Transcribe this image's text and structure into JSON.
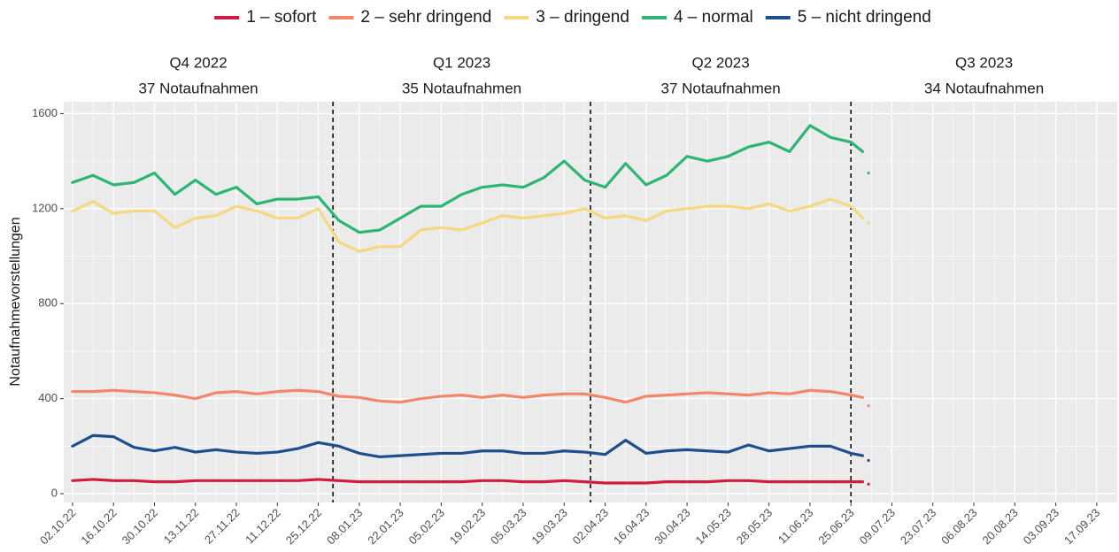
{
  "chart_data": {
    "type": "line",
    "ylabel": "Notaufnahmevorstellungen",
    "x": [
      "2022-10-02",
      "2022-10-09",
      "2022-10-16",
      "2022-10-23",
      "2022-10-30",
      "2022-11-06",
      "2022-11-13",
      "2022-11-20",
      "2022-11-27",
      "2022-12-04",
      "2022-12-11",
      "2022-12-18",
      "2022-12-25",
      "2023-01-01",
      "2023-01-08",
      "2023-01-15",
      "2023-01-22",
      "2023-01-29",
      "2023-02-05",
      "2023-02-12",
      "2023-02-19",
      "2023-02-26",
      "2023-03-05",
      "2023-03-12",
      "2023-03-19",
      "2023-03-26",
      "2023-04-02",
      "2023-04-09",
      "2023-04-16",
      "2023-04-23",
      "2023-04-30",
      "2023-05-07",
      "2023-05-14",
      "2023-05-21",
      "2023-05-28",
      "2023-06-04",
      "2023-06-11",
      "2023-06-18",
      "2023-06-25",
      "2023-06-29",
      "2023-06-30",
      "2023-07-01"
    ],
    "series": [
      {
        "name": "1 – sofort",
        "color": "#d01c3c",
        "values": [
          55,
          60,
          55,
          55,
          50,
          50,
          55,
          55,
          55,
          55,
          55,
          55,
          60,
          55,
          50,
          50,
          50,
          50,
          50,
          50,
          55,
          55,
          50,
          50,
          55,
          50,
          45,
          45,
          45,
          50,
          50,
          50,
          55,
          55,
          50,
          50,
          50,
          50,
          50,
          50,
          null,
          40
        ]
      },
      {
        "name": "2 – sehr dringend",
        "color": "#f4876a",
        "values": [
          430,
          430,
          435,
          430,
          425,
          415,
          400,
          425,
          430,
          420,
          430,
          435,
          430,
          410,
          405,
          390,
          385,
          400,
          410,
          415,
          405,
          415,
          405,
          415,
          420,
          420,
          405,
          385,
          410,
          415,
          420,
          425,
          420,
          415,
          425,
          420,
          435,
          430,
          415,
          405,
          null,
          370
        ]
      },
      {
        "name": "3 – dringend",
        "color": "#f6d880",
        "values": [
          1190,
          1230,
          1180,
          1190,
          1190,
          1120,
          1160,
          1170,
          1210,
          1190,
          1160,
          1160,
          1200,
          1060,
          1020,
          1040,
          1040,
          1110,
          1120,
          1110,
          1140,
          1170,
          1160,
          1170,
          1180,
          1200,
          1160,
          1170,
          1150,
          1190,
          1200,
          1210,
          1210,
          1200,
          1220,
          1190,
          1210,
          1240,
          1210,
          1160,
          null,
          1140
        ]
      },
      {
        "name": "4 – normal",
        "color": "#2bb673",
        "values": [
          1310,
          1340,
          1300,
          1310,
          1350,
          1260,
          1320,
          1260,
          1290,
          1220,
          1240,
          1240,
          1250,
          1150,
          1100,
          1110,
          1160,
          1210,
          1210,
          1260,
          1290,
          1300,
          1290,
          1330,
          1400,
          1320,
          1290,
          1390,
          1300,
          1340,
          1420,
          1400,
          1420,
          1460,
          1480,
          1440,
          1550,
          1500,
          1480,
          1440,
          null,
          1350
        ]
      },
      {
        "name": "5 – nicht dringend",
        "color": "#1f4e8c",
        "values": [
          200,
          245,
          240,
          195,
          180,
          195,
          175,
          185,
          175,
          170,
          175,
          190,
          215,
          200,
          170,
          155,
          160,
          165,
          170,
          170,
          180,
          180,
          170,
          170,
          180,
          175,
          165,
          225,
          170,
          180,
          185,
          180,
          175,
          205,
          180,
          190,
          200,
          200,
          170,
          160,
          null,
          140
        ]
      }
    ],
    "xlim": [
      "2022-09-29",
      "2023-09-24"
    ],
    "xticks": [
      {
        "value": "2022-10-02",
        "label": "02.10.22"
      },
      {
        "value": "2022-10-16",
        "label": "16.10.22"
      },
      {
        "value": "2022-10-30",
        "label": "30.10.22"
      },
      {
        "value": "2022-11-13",
        "label": "13.11.22"
      },
      {
        "value": "2022-11-27",
        "label": "27.11.22"
      },
      {
        "value": "2022-12-11",
        "label": "11.12.22"
      },
      {
        "value": "2022-12-25",
        "label": "25.12.22"
      },
      {
        "value": "2023-01-08",
        "label": "08.01.23"
      },
      {
        "value": "2023-01-22",
        "label": "22.01.23"
      },
      {
        "value": "2023-02-05",
        "label": "05.02.23"
      },
      {
        "value": "2023-02-19",
        "label": "19.02.23"
      },
      {
        "value": "2023-03-05",
        "label": "05.03.23"
      },
      {
        "value": "2023-03-19",
        "label": "19.03.23"
      },
      {
        "value": "2023-04-02",
        "label": "02.04.23"
      },
      {
        "value": "2023-04-16",
        "label": "16.04.23"
      },
      {
        "value": "2023-04-30",
        "label": "30.04.23"
      },
      {
        "value": "2023-05-14",
        "label": "14.05.23"
      },
      {
        "value": "2023-05-28",
        "label": "28.05.23"
      },
      {
        "value": "2023-06-11",
        "label": "11.06.23"
      },
      {
        "value": "2023-06-25",
        "label": "25.06.23"
      },
      {
        "value": "2023-07-09",
        "label": "09.07.23"
      },
      {
        "value": "2023-07-23",
        "label": "23.07.23"
      },
      {
        "value": "2023-08-06",
        "label": "06.08.23"
      },
      {
        "value": "2023-08-20",
        "label": "20.08.23"
      },
      {
        "value": "2023-09-03",
        "label": "03.09.23"
      },
      {
        "value": "2023-09-17",
        "label": "17.09.23"
      }
    ],
    "ylim": [
      -37,
      1650
    ],
    "yticks": [
      0,
      400,
      800,
      1200,
      1600
    ],
    "grid": true,
    "legend": "top",
    "quarter_boundaries": [
      "2022-12-30",
      "2023-03-28",
      "2023-06-25"
    ],
    "panels": [
      {
        "title": "Q4 2022",
        "subtitle": "37 Notaufnahmen"
      },
      {
        "title": "Q1 2023",
        "subtitle": "35 Notaufnahmen"
      },
      {
        "title": "Q2 2023",
        "subtitle": "37 Notaufnahmen"
      },
      {
        "title": "Q3 2023",
        "subtitle": "34 Notaufnahmen"
      }
    ]
  }
}
